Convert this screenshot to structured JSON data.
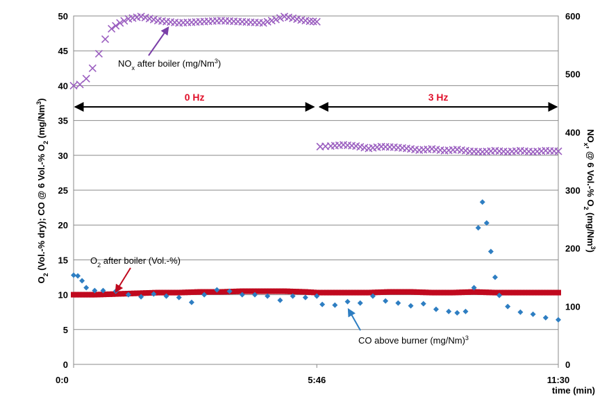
{
  "chart_data": {
    "type": "scatter",
    "x_unit": "time (min)",
    "x_ticks": [
      "0:0",
      "5:46",
      "11:30"
    ],
    "xlabel": "time (min)",
    "y_left": {
      "label_parts": [
        "O",
        "2",
        " (Vol.-% dry); CO @ 6 Vol.-% O",
        "2",
        " (mg/Nm",
        "3",
        ")"
      ],
      "range": [
        0,
        50
      ],
      "ticks": [
        "0",
        "5",
        "10",
        "15",
        "20",
        "25",
        "30",
        "35",
        "40",
        "45",
        "50"
      ]
    },
    "y_right": {
      "label_parts": [
        "NO",
        "x",
        ", @ 6 Vol.-% O",
        "2",
        " (mg/Nm",
        "3",
        ")"
      ],
      "range": [
        0,
        600
      ],
      "ticks": [
        "0",
        "100",
        "200",
        "300",
        "400",
        "500",
        "600"
      ]
    },
    "grid": "horizontal",
    "periods": [
      {
        "label": "0 Hz",
        "x_start": 0,
        "x_end": 5.77
      },
      {
        "label": "3 Hz",
        "x_start": 5.77,
        "x_end": 11.5
      }
    ],
    "annotations": {
      "nox": {
        "text": "NO",
        "sub": "x",
        "text2": " after boiler (mg/Nm",
        "sup": "3",
        "text3": ")"
      },
      "o2": {
        "text": "O",
        "sub": "2",
        "text2": " after boiler (Vol.-%)"
      },
      "co": {
        "text": "CO above burner (mg/Nm",
        "sup": "3",
        "text2": ")"
      }
    },
    "series": [
      {
        "name": "NOx after boiler",
        "axis": "right",
        "marker": "x",
        "color": "#9b5fc0",
        "x": [
          0.0,
          0.15,
          0.3,
          0.45,
          0.6,
          0.75,
          0.9,
          1.1,
          1.3,
          1.6,
          2.0,
          2.5,
          3.0,
          3.5,
          4.0,
          4.5,
          4.8,
          5.0,
          5.2,
          5.4,
          5.6,
          5.77,
          5.85,
          6.1,
          6.4,
          6.7,
          7.0,
          7.3,
          7.6,
          7.9,
          8.2,
          8.5,
          8.8,
          9.1,
          9.4,
          9.7,
          10.0,
          10.3,
          10.6,
          10.9,
          11.2,
          11.5
        ],
        "y": [
          480,
          482,
          492,
          510,
          535,
          560,
          578,
          588,
          595,
          599,
          592,
          588,
          590,
          592,
          590,
          588,
          594,
          599,
          596,
          593,
          591,
          590,
          375,
          376,
          378,
          376,
          372,
          375,
          374,
          372,
          369,
          371,
          368,
          370,
          367,
          366,
          368,
          366,
          368,
          366,
          368,
          367
        ]
      },
      {
        "name": "O2 after boiler",
        "axis": "left",
        "marker": "square",
        "color": "#c0091e",
        "x": [
          0.0,
          0.5,
          1.0,
          1.5,
          2.0,
          2.5,
          3.0,
          3.5,
          4.0,
          4.5,
          5.0,
          5.5,
          5.77,
          6.0,
          6.5,
          7.0,
          7.5,
          8.0,
          8.5,
          9.0,
          9.5,
          10.0,
          10.5,
          11.0,
          11.5
        ],
        "y": [
          10.0,
          10.0,
          10.1,
          10.2,
          10.3,
          10.3,
          10.4,
          10.4,
          10.5,
          10.5,
          10.5,
          10.4,
          10.3,
          10.3,
          10.3,
          10.3,
          10.4,
          10.4,
          10.3,
          10.3,
          10.4,
          10.3,
          10.3,
          10.3,
          10.3
        ]
      },
      {
        "name": "CO above burner",
        "axis": "left",
        "marker": "diamond",
        "color": "#2e7ec2",
        "x": [
          0.0,
          0.1,
          0.2,
          0.3,
          0.5,
          0.7,
          1.0,
          1.3,
          1.6,
          1.9,
          2.2,
          2.5,
          2.8,
          3.1,
          3.4,
          3.7,
          4.0,
          4.3,
          4.6,
          4.9,
          5.2,
          5.5,
          5.77,
          5.9,
          6.2,
          6.5,
          6.8,
          7.1,
          7.4,
          7.7,
          8.0,
          8.3,
          8.6,
          8.9,
          9.1,
          9.3,
          9.5,
          9.6,
          9.7,
          9.8,
          9.9,
          10.0,
          10.1,
          10.3,
          10.6,
          10.9,
          11.2,
          11.5
        ],
        "y": [
          12.8,
          12.7,
          12.0,
          11.0,
          10.6,
          10.6,
          10.5,
          10.0,
          9.7,
          10.1,
          9.8,
          9.6,
          8.9,
          10.0,
          10.7,
          10.5,
          10.0,
          10.0,
          9.8,
          9.2,
          9.8,
          9.6,
          9.8,
          8.6,
          8.5,
          9.0,
          8.8,
          9.8,
          9.1,
          8.8,
          8.4,
          8.7,
          7.9,
          7.6,
          7.4,
          7.6,
          11.0,
          19.6,
          23.3,
          20.3,
          16.2,
          12.5,
          9.9,
          8.3,
          7.5,
          7.2,
          6.7,
          6.4
        ]
      }
    ]
  }
}
